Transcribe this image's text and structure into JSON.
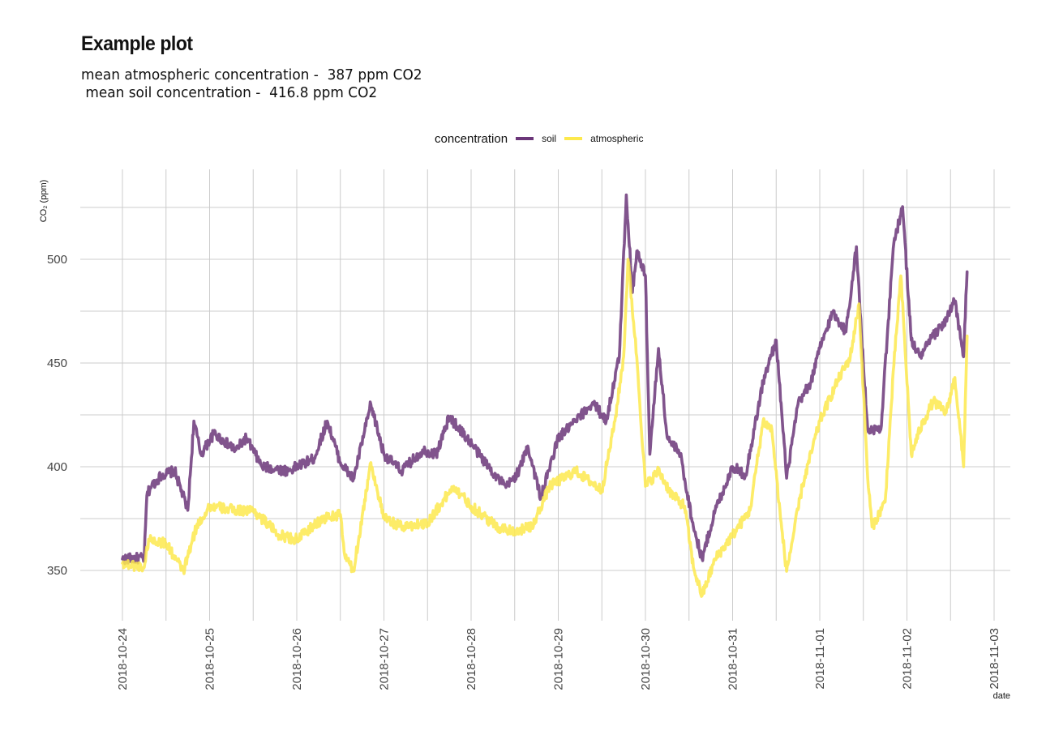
{
  "chart_data": {
    "type": "line",
    "title": "Example plot",
    "subtitle_lines": [
      "mean atmospheric concentration -  387 ppm CO2",
      " mean soil concentration -  416.8 ppm CO2"
    ],
    "xlabel": "date",
    "ylabel": "CO₂ (ppm)",
    "x_origin_date": "2018-10-24",
    "x_unit": "days since 2018-10-24",
    "xlim_days": [
      -0.48,
      10.2
    ],
    "ylim": [
      325.8,
      543.4
    ],
    "grid": true,
    "y_major_ticks": [
      350,
      400,
      450,
      500
    ],
    "y_minor_ticks": [
      375,
      425,
      475,
      525
    ],
    "x_tick_labels": [
      "2018-10-24",
      "2018-10-25",
      "2018-10-26",
      "2018-10-27",
      "2018-10-28",
      "2018-10-29",
      "2018-10-30",
      "2018-10-31",
      "2018-11-01",
      "2018-11-02",
      "2018-11-03"
    ],
    "x_tick_days": [
      0,
      1,
      2,
      3,
      4,
      5,
      6,
      7,
      8,
      9,
      10
    ],
    "legend": {
      "title": "concentration",
      "position": "top",
      "entries": [
        {
          "label": "soil",
          "color": "#6b3679"
        },
        {
          "label": "atmospheric",
          "color": "#fde94d"
        }
      ]
    },
    "series": [
      {
        "name": "soil",
        "color": "#6b3679",
        "x_days": [
          0.0,
          0.25,
          0.28,
          0.32,
          0.45,
          0.6,
          0.75,
          0.82,
          0.9,
          1.05,
          1.3,
          1.42,
          1.6,
          1.9,
          2.2,
          2.35,
          2.5,
          2.65,
          2.85,
          3.0,
          3.2,
          3.45,
          3.6,
          3.75,
          3.95,
          4.2,
          4.4,
          4.55,
          4.65,
          4.8,
          5.0,
          5.2,
          5.4,
          5.55,
          5.7,
          5.78,
          5.85,
          5.9,
          6.0,
          6.05,
          6.15,
          6.25,
          6.4,
          6.55,
          6.65,
          6.8,
          7.0,
          7.15,
          7.35,
          7.5,
          7.62,
          7.75,
          7.9,
          8.0,
          8.15,
          8.3,
          8.42,
          8.5,
          8.55,
          8.7,
          8.85,
          8.95,
          9.05,
          9.15,
          9.3,
          9.45,
          9.55,
          9.65,
          9.69
        ],
        "values": [
          355.5,
          356,
          386,
          390,
          396,
          398,
          379,
          422,
          406,
          416,
          408,
          414,
          400,
          398,
          404,
          422,
          402,
          394,
          430,
          406,
          398,
          408,
          406,
          424,
          414,
          400,
          390,
          398,
          410,
          385,
          414,
          422,
          431,
          422,
          453,
          531,
          484,
          504,
          492,
          406,
          457,
          414,
          406,
          371,
          355.5,
          379,
          400,
          396,
          441,
          461,
          394.5,
          430,
          441,
          457,
          474.6,
          465,
          506,
          449,
          418,
          418,
          508,
          525.4,
          461,
          453,
          463,
          470.7,
          480,
          453,
          494
        ]
      },
      {
        "name": "atmospheric",
        "color": "#fde94d",
        "x_days": [
          0.0,
          0.25,
          0.3,
          0.5,
          0.7,
          0.85,
          1.0,
          1.3,
          1.5,
          1.8,
          2.0,
          2.3,
          2.5,
          2.55,
          2.65,
          2.85,
          3.0,
          3.2,
          3.5,
          3.8,
          4.0,
          4.3,
          4.5,
          4.7,
          4.9,
          5.2,
          5.5,
          5.65,
          5.75,
          5.8,
          5.9,
          6.0,
          6.15,
          6.3,
          6.45,
          6.55,
          6.65,
          6.8,
          7.0,
          7.2,
          7.35,
          7.45,
          7.55,
          7.62,
          7.8,
          8.0,
          8.2,
          8.35,
          8.45,
          8.55,
          8.6,
          8.75,
          8.85,
          8.93,
          9.05,
          9.15,
          9.3,
          9.45,
          9.55,
          9.65,
          9.69
        ],
        "values": [
          353.5,
          351.5,
          365,
          363,
          349.6,
          371,
          381,
          379,
          379,
          367,
          365,
          375,
          377,
          357.4,
          349.6,
          402,
          375,
          371,
          373,
          390.6,
          381,
          371,
          369,
          371,
          390.6,
          398,
          388.7,
          422,
          453,
          500,
          453,
          390.6,
          398,
          386.7,
          381,
          351.5,
          337.9,
          355.5,
          367,
          379,
          422,
          418,
          375,
          349.6,
          390.6,
          422,
          441,
          453,
          478.5,
          394.5,
          371,
          383,
          449,
          492,
          406,
          418,
          431.6,
          426,
          443,
          400,
          463
        ]
      }
    ]
  }
}
